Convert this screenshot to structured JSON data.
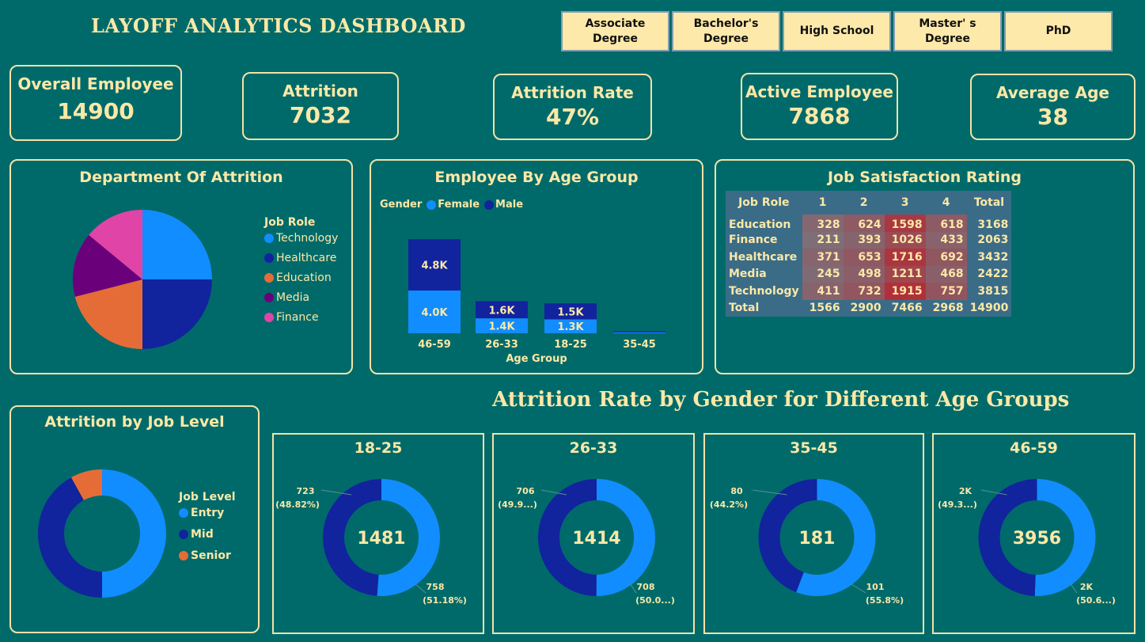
{
  "title": "LAYOFF ANALYTICS DASHBOARD",
  "slicers": [
    "Associate Degree",
    "Bachelor's Degree",
    "High School",
    "Master' s Degree",
    "PhD"
  ],
  "kpis": {
    "overall": {
      "label": "Overall Employee",
      "value": "14900"
    },
    "attrition": {
      "label": "Attrition",
      "value": "7032"
    },
    "rate": {
      "label": "Attrition Rate",
      "value": "47%"
    },
    "active": {
      "label": "Active Employee",
      "value": "7868"
    },
    "age": {
      "label": "Average Age",
      "value": "38"
    }
  },
  "dept": {
    "title": "Department Of Attrition",
    "legend_title": "Job Role",
    "items": [
      "Technology",
      "Healthcare",
      "Education",
      "Media",
      "Finance"
    ],
    "colors": [
      "#118dff",
      "#12239e",
      "#e66c37",
      "#6b007b",
      "#e044a7"
    ],
    "values": [
      25,
      25,
      21,
      15,
      14
    ]
  },
  "age_chart": {
    "title": "Employee By Age Group",
    "legend_title": "Gender",
    "female_label": "Female",
    "male_label": "Male",
    "xlabel": "Age Group",
    "categories": [
      "46-59",
      "26-33",
      "18-25",
      "35-45"
    ],
    "female": [
      4.0,
      1.4,
      1.3,
      0.08
    ],
    "male": [
      4.8,
      1.6,
      1.5,
      0.1
    ],
    "female_labels": [
      "4.0K",
      "1.4K",
      "1.3K",
      ""
    ],
    "male_labels": [
      "4.8K",
      "1.6K",
      "1.5K",
      ""
    ],
    "female_color": "#118dff",
    "male_color": "#12239e"
  },
  "job_sat": {
    "title": "Job Satisfaction Rating",
    "headers": [
      "Job Role",
      "1",
      "2",
      "3",
      "4",
      "Total"
    ],
    "rows": [
      [
        "Education",
        "328",
        "624",
        "1598",
        "618",
        "3168"
      ],
      [
        "Finance",
        "211",
        "393",
        "1026",
        "433",
        "2063"
      ],
      [
        "Healthcare",
        "371",
        "653",
        "1716",
        "692",
        "3432"
      ],
      [
        "Media",
        "245",
        "498",
        "1211",
        "468",
        "2422"
      ],
      [
        "Technology",
        "411",
        "732",
        "1915",
        "757",
        "3815"
      ]
    ],
    "total_row": [
      "Total",
      "1566",
      "2900",
      "7466",
      "2968",
      "14900"
    ]
  },
  "job_level": {
    "title": "Attrition by Job Level",
    "legend_title": "Job Level",
    "items": [
      "Entry",
      "Mid",
      "Senior"
    ],
    "colors": [
      "#118dff",
      "#12239e",
      "#e66c37"
    ],
    "values": [
      50,
      42,
      8
    ]
  },
  "gender_title": "Attrition Rate by Gender for Different Age Groups",
  "gender_donuts": [
    {
      "title": "18-25",
      "center": "1481",
      "male_val": "723",
      "male_pct": "(48.82%)",
      "female_val": "758",
      "female_pct": "(51.18%)",
      "female_frac": 0.5118
    },
    {
      "title": "26-33",
      "center": "1414",
      "male_val": "706",
      "male_pct": "(49.9...)",
      "female_val": "708",
      "female_pct": "(50.0...)",
      "female_frac": 0.5007
    },
    {
      "title": "35-45",
      "center": "181",
      "male_val": "80",
      "male_pct": "(44.2%)",
      "female_val": "101",
      "female_pct": "(55.8%)",
      "female_frac": 0.558
    },
    {
      "title": "46-59",
      "center": "3956",
      "male_val": "2K",
      "male_pct": "(49.3...)",
      "female_val": "2K",
      "female_pct": "(50.6...)",
      "female_frac": 0.506
    }
  ]
}
